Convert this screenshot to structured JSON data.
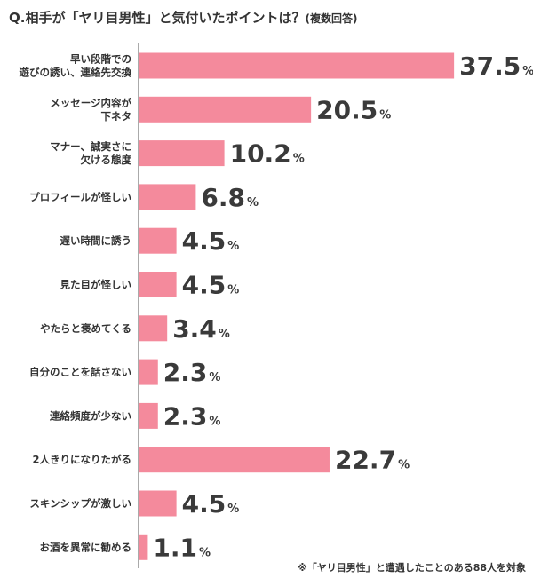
{
  "title": "Q.相手が「ヤリ目男性」と気付いたポイントは？",
  "title_suffix": "(複数回答)",
  "footnote": "※「ヤリ目男性」と遭遇したことのある88人を対象",
  "bar_color": "#f48a9c",
  "chart_data": {
    "type": "bar",
    "orientation": "horizontal",
    "categories": [
      "早い段階での\n遊びの誘い、連絡先交換",
      "メッセージ内容が\n下ネタ",
      "マナー、誠実さに\n欠ける態度",
      "プロフィールが怪しい",
      "遅い時間に誘う",
      "見た目が怪しい",
      "やたらと褒めてくる",
      "自分のことを話さない",
      "連絡頻度が少ない",
      "2人きりになりたがる",
      "スキンシップが激しい",
      "お酒を異常に勧める"
    ],
    "values": [
      37.5,
      20.5,
      10.2,
      6.8,
      4.5,
      4.5,
      3.4,
      2.3,
      2.3,
      22.7,
      4.5,
      1.1
    ],
    "value_labels": [
      "37.5",
      "20.5",
      "10.2",
      "6.8",
      "4.5",
      "4.5",
      "3.4",
      "2.3",
      "2.3",
      "22.7",
      "4.5",
      "1.1"
    ],
    "unit": "%",
    "grid": false
  }
}
